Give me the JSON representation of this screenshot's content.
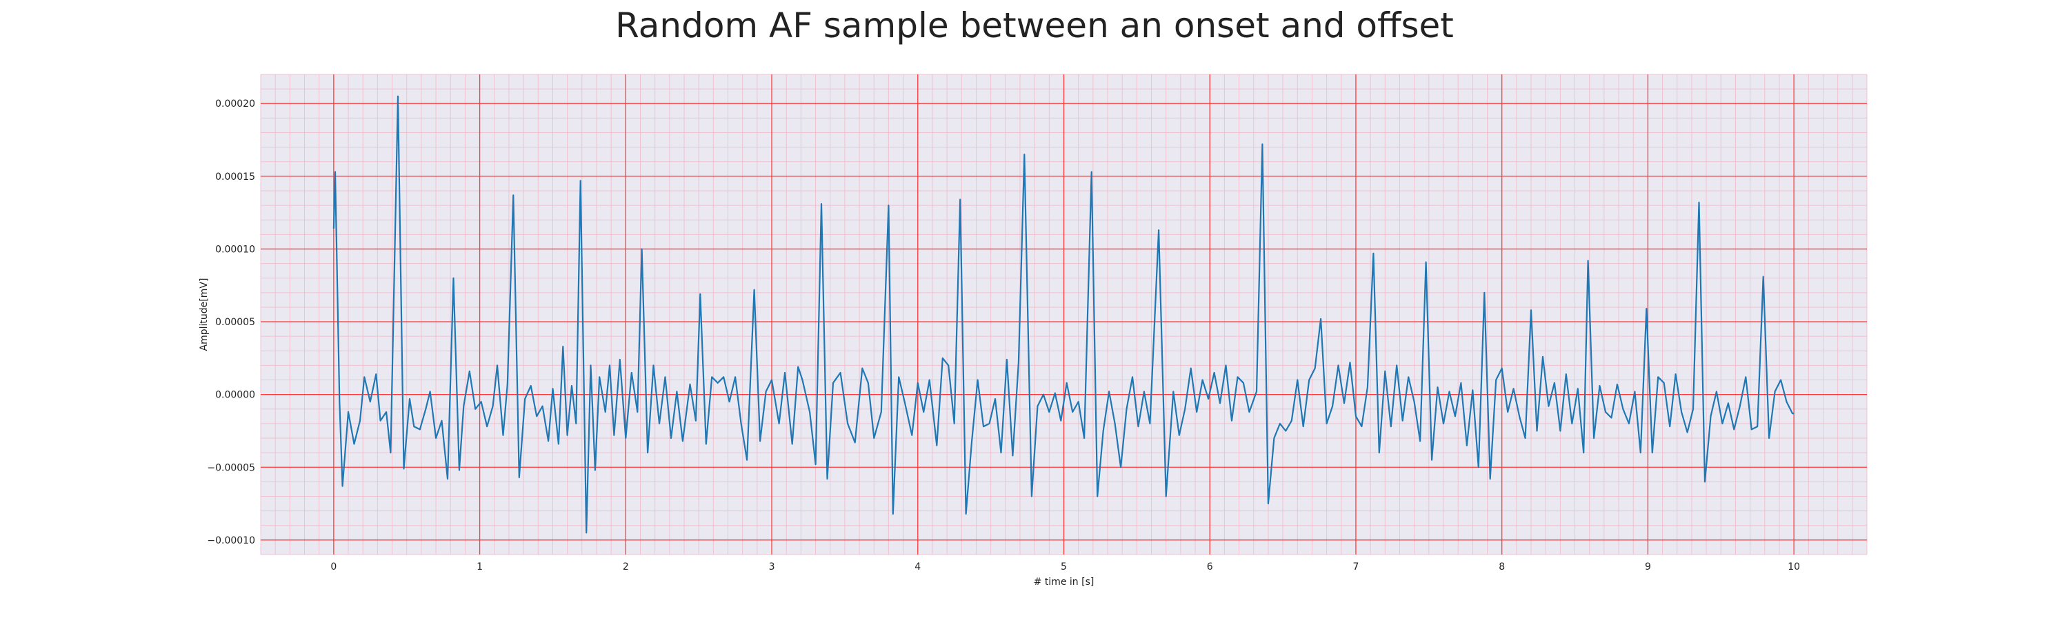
{
  "chart_data": {
    "type": "line",
    "title": "Random AF sample between an onset and offset",
    "xlabel": "# time in [s]",
    "ylabel": "Amplitude[mV]",
    "xlim": [
      -0.5,
      10.5
    ],
    "ylim": [
      -0.00011,
      0.00022
    ],
    "x_ticks": [
      "0",
      "1",
      "2",
      "3",
      "4",
      "5",
      "6",
      "7",
      "8",
      "9",
      "10"
    ],
    "y_ticks": [
      "−0.00010",
      "−0.00005",
      "0.00000",
      "0.00005",
      "0.00010",
      "0.00015",
      "0.00020"
    ],
    "grid": "major red, minor pink",
    "colors": {
      "line": "#1f77b4",
      "plot_bg": "#eae9f2",
      "major_grid": "#ff3b3b",
      "minor_grid": "#f2b8c6"
    },
    "series": [
      {
        "points": [
          [
            0.0,
            0.000114
          ],
          [
            0.01,
            0.000153
          ],
          [
            0.04,
            -5e-06
          ],
          [
            0.06,
            -6.3e-05
          ],
          [
            0.1,
            -1.2e-05
          ],
          [
            0.14,
            -3.4e-05
          ],
          [
            0.18,
            -1.8e-05
          ],
          [
            0.21,
            1.2e-05
          ],
          [
            0.25,
            -5e-06
          ],
          [
            0.29,
            1.4e-05
          ],
          [
            0.32,
            -1.8e-05
          ],
          [
            0.36,
            -1.2e-05
          ],
          [
            0.39,
            -4e-05
          ],
          [
            0.44,
            0.000205
          ],
          [
            0.48,
            -5.1e-05
          ],
          [
            0.52,
            -3e-06
          ],
          [
            0.55,
            -2.2e-05
          ],
          [
            0.59,
            -2.4e-05
          ],
          [
            0.63,
            -1e-05
          ],
          [
            0.66,
            2e-06
          ],
          [
            0.7,
            -3e-05
          ],
          [
            0.74,
            -1.8e-05
          ],
          [
            0.78,
            -5.8e-05
          ],
          [
            0.82,
            8e-05
          ],
          [
            0.86,
            -5.2e-05
          ],
          [
            0.89,
            -8e-06
          ],
          [
            0.93,
            1.6e-05
          ],
          [
            0.97,
            -1e-05
          ],
          [
            1.01,
            -5e-06
          ],
          [
            1.05,
            -2.2e-05
          ],
          [
            1.09,
            -8e-06
          ],
          [
            1.12,
            2e-05
          ],
          [
            1.16,
            -2.8e-05
          ],
          [
            1.19,
            7e-06
          ],
          [
            1.23,
            0.000137
          ],
          [
            1.27,
            -5.7e-05
          ],
          [
            1.31,
            -3e-06
          ],
          [
            1.35,
            6e-06
          ],
          [
            1.39,
            -1.5e-05
          ],
          [
            1.43,
            -8e-06
          ],
          [
            1.47,
            -3.2e-05
          ],
          [
            1.5,
            4e-06
          ],
          [
            1.54,
            -3.4e-05
          ],
          [
            1.57,
            3.3e-05
          ],
          [
            1.6,
            -2.8e-05
          ],
          [
            1.63,
            6e-06
          ],
          [
            1.66,
            -2e-05
          ],
          [
            1.69,
            0.000147
          ],
          [
            1.73,
            -9.5e-05
          ],
          [
            1.76,
            2e-05
          ],
          [
            1.79,
            -5.2e-05
          ],
          [
            1.82,
            1.2e-05
          ],
          [
            1.86,
            -1.2e-05
          ],
          [
            1.89,
            2e-05
          ],
          [
            1.92,
            -2.8e-05
          ],
          [
            1.96,
            2.4e-05
          ],
          [
            2.0,
            -3e-05
          ],
          [
            2.04,
            1.5e-05
          ],
          [
            2.08,
            -1.2e-05
          ],
          [
            2.11,
            0.0001
          ],
          [
            2.15,
            -4e-05
          ],
          [
            2.19,
            2e-05
          ],
          [
            2.23,
            -2e-05
          ],
          [
            2.27,
            1.2e-05
          ],
          [
            2.31,
            -3e-05
          ],
          [
            2.35,
            2e-06
          ],
          [
            2.39,
            -3.2e-05
          ],
          [
            2.44,
            7e-06
          ],
          [
            2.48,
            -1.8e-05
          ],
          [
            2.51,
            6.9e-05
          ],
          [
            2.55,
            -3.4e-05
          ],
          [
            2.59,
            1.2e-05
          ],
          [
            2.63,
            8e-06
          ],
          [
            2.67,
            1.2e-05
          ],
          [
            2.71,
            -5e-06
          ],
          [
            2.75,
            1.2e-05
          ],
          [
            2.79,
            -2e-05
          ],
          [
            2.83,
            -4.5e-05
          ],
          [
            2.88,
            7.2e-05
          ],
          [
            2.92,
            -3.2e-05
          ],
          [
            2.96,
            2e-06
          ],
          [
            3.0,
            1e-05
          ],
          [
            3.05,
            -2e-05
          ],
          [
            3.09,
            1.5e-05
          ],
          [
            3.14,
            -3.4e-05
          ],
          [
            3.18,
            1.9e-05
          ],
          [
            3.21,
            1e-05
          ],
          [
            3.26,
            -1.2e-05
          ],
          [
            3.3,
            -4.8e-05
          ],
          [
            3.34,
            0.000131
          ],
          [
            3.38,
            -5.8e-05
          ],
          [
            3.42,
            8e-06
          ],
          [
            3.47,
            1.5e-05
          ],
          [
            3.52,
            -2e-05
          ],
          [
            3.57,
            -3.3e-05
          ],
          [
            3.62,
            1.8e-05
          ],
          [
            3.66,
            8e-06
          ],
          [
            3.7,
            -3e-05
          ],
          [
            3.75,
            -1.2e-05
          ],
          [
            3.8,
            0.00013
          ],
          [
            3.83,
            -8.2e-05
          ],
          [
            3.87,
            1.2e-05
          ],
          [
            3.91,
            -5e-06
          ],
          [
            3.96,
            -2.8e-05
          ],
          [
            4.0,
            8e-06
          ],
          [
            4.04,
            -1.2e-05
          ],
          [
            4.08,
            1e-05
          ],
          [
            4.13,
            -3.5e-05
          ],
          [
            4.17,
            2.5e-05
          ],
          [
            4.21,
            2e-05
          ],
          [
            4.25,
            -2e-05
          ],
          [
            4.29,
            0.000134
          ],
          [
            4.33,
            -8.2e-05
          ],
          [
            4.37,
            -3.2e-05
          ],
          [
            4.41,
            1e-05
          ],
          [
            4.45,
            -2.2e-05
          ],
          [
            4.49,
            -2e-05
          ],
          [
            4.53,
            -3e-06
          ],
          [
            4.57,
            -4e-05
          ],
          [
            4.61,
            2.4e-05
          ],
          [
            4.65,
            -4.2e-05
          ],
          [
            4.69,
            2.2e-05
          ],
          [
            4.73,
            0.000165
          ],
          [
            4.78,
            -7e-05
          ],
          [
            4.82,
            -8e-06
          ],
          [
            4.86,
            0.0
          ],
          [
            4.9,
            -1.2e-05
          ],
          [
            4.94,
            1e-06
          ],
          [
            4.98,
            -1.8e-05
          ],
          [
            5.02,
            8e-06
          ],
          [
            5.06,
            -1.2e-05
          ],
          [
            5.1,
            -5e-06
          ],
          [
            5.14,
            -3e-05
          ],
          [
            5.19,
            0.000153
          ],
          [
            5.23,
            -7e-05
          ],
          [
            5.27,
            -2.5e-05
          ],
          [
            5.31,
            2e-06
          ],
          [
            5.35,
            -2e-05
          ],
          [
            5.39,
            -5e-05
          ],
          [
            5.43,
            -1e-05
          ],
          [
            5.47,
            1.2e-05
          ],
          [
            5.51,
            -2.2e-05
          ],
          [
            5.55,
            2e-06
          ],
          [
            5.59,
            -2e-05
          ],
          [
            5.65,
            0.000113
          ],
          [
            5.7,
            -7e-05
          ],
          [
            5.75,
            2e-06
          ],
          [
            5.79,
            -2.8e-05
          ],
          [
            5.83,
            -1e-05
          ],
          [
            5.87,
            1.8e-05
          ],
          [
            5.91,
            -1.2e-05
          ],
          [
            5.95,
            1e-05
          ],
          [
            5.99,
            -3e-06
          ],
          [
            6.03,
            1.5e-05
          ],
          [
            6.07,
            -6e-06
          ],
          [
            6.11,
            2e-05
          ],
          [
            6.15,
            -1.8e-05
          ],
          [
            6.19,
            1.2e-05
          ],
          [
            6.23,
            8e-06
          ],
          [
            6.27,
            -1.2e-05
          ],
          [
            6.32,
            2e-06
          ],
          [
            6.36,
            0.000172
          ],
          [
            6.4,
            -7.5e-05
          ],
          [
            6.44,
            -3e-05
          ],
          [
            6.48,
            -2e-05
          ],
          [
            6.52,
            -2.5e-05
          ],
          [
            6.56,
            -1.8e-05
          ],
          [
            6.6,
            1e-05
          ],
          [
            6.64,
            -2.2e-05
          ],
          [
            6.68,
            1e-05
          ],
          [
            6.72,
            1.8e-05
          ],
          [
            6.76,
            5.2e-05
          ],
          [
            6.8,
            -2e-05
          ],
          [
            6.84,
            -8e-06
          ],
          [
            6.88,
            2e-05
          ],
          [
            6.92,
            -6e-06
          ],
          [
            6.96,
            2.2e-05
          ],
          [
            7.0,
            -1.5e-05
          ],
          [
            7.04,
            -2.2e-05
          ],
          [
            7.08,
            5e-06
          ],
          [
            7.12,
            9.7e-05
          ],
          [
            7.16,
            -4e-05
          ],
          [
            7.2,
            1.6e-05
          ],
          [
            7.24,
            -2.2e-05
          ],
          [
            7.28,
            2e-05
          ],
          [
            7.32,
            -1.8e-05
          ],
          [
            7.36,
            1.2e-05
          ],
          [
            7.4,
            -5e-06
          ],
          [
            7.44,
            -3.2e-05
          ],
          [
            7.48,
            9.1e-05
          ],
          [
            7.52,
            -4.5e-05
          ],
          [
            7.56,
            5e-06
          ],
          [
            7.6,
            -2e-05
          ],
          [
            7.64,
            2e-06
          ],
          [
            7.68,
            -1.5e-05
          ],
          [
            7.72,
            8e-06
          ],
          [
            7.76,
            -3.5e-05
          ],
          [
            7.8,
            3e-06
          ],
          [
            7.84,
            -5e-05
          ],
          [
            7.88,
            7e-05
          ],
          [
            7.92,
            -5.8e-05
          ],
          [
            7.96,
            1e-05
          ],
          [
            8.0,
            1.8e-05
          ],
          [
            8.04,
            -1.2e-05
          ],
          [
            8.08,
            4e-06
          ],
          [
            8.12,
            -1.5e-05
          ],
          [
            8.16,
            -3e-05
          ],
          [
            8.2,
            5.8e-05
          ],
          [
            8.24,
            -2.5e-05
          ],
          [
            8.28,
            2.6e-05
          ],
          [
            8.32,
            -8e-06
          ],
          [
            8.36,
            8e-06
          ],
          [
            8.4,
            -2.5e-05
          ],
          [
            8.44,
            1.4e-05
          ],
          [
            8.48,
            -2e-05
          ],
          [
            8.52,
            4e-06
          ],
          [
            8.56,
            -4e-05
          ],
          [
            8.59,
            9.2e-05
          ],
          [
            8.63,
            -3e-05
          ],
          [
            8.67,
            6e-06
          ],
          [
            8.71,
            -1.2e-05
          ],
          [
            8.75,
            -1.6e-05
          ],
          [
            8.79,
            7e-06
          ],
          [
            8.83,
            -1e-05
          ],
          [
            8.87,
            -2e-05
          ],
          [
            8.91,
            2e-06
          ],
          [
            8.95,
            -4e-05
          ],
          [
            8.99,
            5.9e-05
          ],
          [
            9.03,
            -4e-05
          ],
          [
            9.07,
            1.2e-05
          ],
          [
            9.11,
            8e-06
          ],
          [
            9.15,
            -2.2e-05
          ],
          [
            9.19,
            1.4e-05
          ],
          [
            9.23,
            -1.2e-05
          ],
          [
            9.27,
            -2.6e-05
          ],
          [
            9.31,
            -1e-05
          ],
          [
            9.35,
            0.000132
          ],
          [
            9.39,
            -6e-05
          ],
          [
            9.43,
            -1.5e-05
          ],
          [
            9.47,
            2e-06
          ],
          [
            9.51,
            -2e-05
          ],
          [
            9.55,
            -6e-06
          ],
          [
            9.59,
            -2.4e-05
          ],
          [
            9.63,
            -8e-06
          ],
          [
            9.67,
            1.2e-05
          ],
          [
            9.71,
            -2.4e-05
          ],
          [
            9.75,
            -2.2e-05
          ],
          [
            9.79,
            8.1e-05
          ],
          [
            9.83,
            -3e-05
          ],
          [
            9.87,
            2e-06
          ],
          [
            9.91,
            1e-05
          ],
          [
            9.95,
            -5e-06
          ],
          [
            9.99,
            -1.3e-05
          ],
          [
            10.0,
            -1.3e-05
          ]
        ]
      }
    ]
  }
}
